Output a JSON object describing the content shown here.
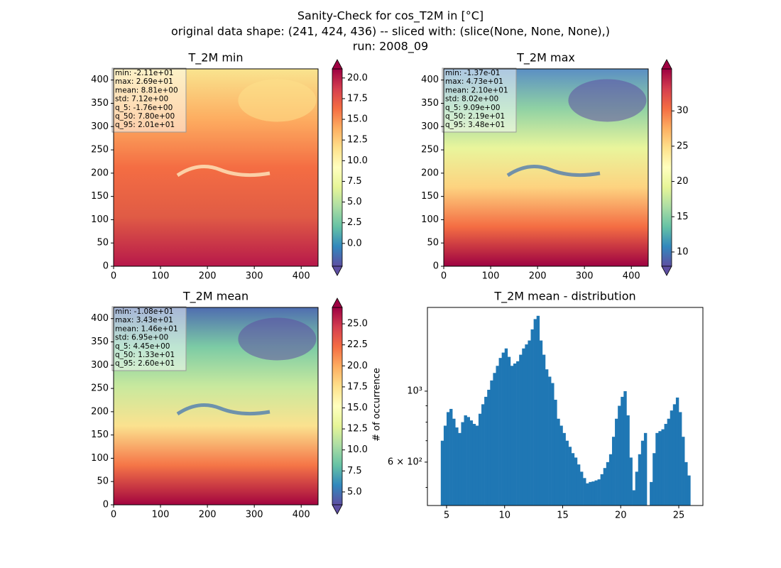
{
  "suptitle": [
    "Sanity-Check for cos_T2M in [°C]",
    "original data shape: (241, 424, 436) -- sliced with: (slice(None, None, None),)",
    "run: 2008_09"
  ],
  "chart_data": [
    {
      "type": "heatmap",
      "title": "T_2M min",
      "xlim": [
        0,
        436
      ],
      "xticks": [
        0,
        100,
        200,
        300,
        400
      ],
      "ylim": [
        0,
        424
      ],
      "yticks": [
        0,
        50,
        100,
        150,
        200,
        250,
        300,
        350,
        400
      ],
      "colormap": [
        "#5e4fa2",
        "#3288bd",
        "#66c2a5",
        "#abdda4",
        "#e6f598",
        "#ffffbf",
        "#fee08b",
        "#fdae61",
        "#f46d43",
        "#d53e4f",
        "#9e0142"
      ],
      "clim": [
        -2.76,
        21.1
      ],
      "cticks": [
        {
          "value": 0,
          "label": "0.0"
        },
        {
          "value": 2.5,
          "label": "2.5"
        },
        {
          "value": 5,
          "label": "5.0"
        },
        {
          "value": 7.5,
          "label": "7.5"
        },
        {
          "value": 10,
          "label": "10.0"
        },
        {
          "value": 12.5,
          "label": "12.5"
        },
        {
          "value": 15,
          "label": "15.0"
        },
        {
          "value": 17.5,
          "label": "17.5"
        },
        {
          "value": 20,
          "label": "20.0"
        }
      ],
      "stats": [
        "min: -2.11e+01",
        "max: 2.69e+01",
        "mean: 8.81e+00",
        "std: 7.12e+00",
        "q_5: -1.76e+00",
        "q_50: 7.80e+00",
        "q_95: 2.01e+01"
      ]
    },
    {
      "type": "heatmap",
      "title": "T_2M max",
      "xlim": [
        0,
        436
      ],
      "xticks": [
        0,
        100,
        200,
        300,
        400
      ],
      "ylim": [
        0,
        424
      ],
      "yticks": [
        0,
        50,
        100,
        150,
        200,
        250,
        300,
        350,
        400
      ],
      "colormap": [
        "#5e4fa2",
        "#3288bd",
        "#66c2a5",
        "#abdda4",
        "#e6f598",
        "#ffffbf",
        "#fee08b",
        "#fdae61",
        "#f46d43",
        "#d53e4f",
        "#9e0142"
      ],
      "clim": [
        7.98,
        35.96
      ],
      "cticks": [
        10,
        15,
        20,
        25,
        30
      ],
      "stats": [
        "min: -1.37e-01",
        "max: 4.73e+01",
        "mean: 2.10e+01",
        "std: 8.02e+00",
        "q_5: 9.09e+00",
        "q_50: 2.19e+01",
        "q_95: 3.48e+01"
      ]
    },
    {
      "type": "heatmap",
      "title": "T_2M mean",
      "xlim": [
        0,
        436
      ],
      "xticks": [
        0,
        100,
        200,
        300,
        400
      ],
      "ylim": [
        0,
        424
      ],
      "yticks": [
        0,
        50,
        100,
        150,
        200,
        250,
        300,
        350,
        400
      ],
      "colormap": [
        "#5e4fa2",
        "#3288bd",
        "#66c2a5",
        "#abdda4",
        "#e6f598",
        "#ffffbf",
        "#fee08b",
        "#fdae61",
        "#f46d43",
        "#d53e4f",
        "#9e0142"
      ],
      "clim": [
        3.47,
        26.95
      ],
      "cticks": [
        {
          "value": 5,
          "label": "5.0"
        },
        {
          "value": 7.5,
          "label": "7.5"
        },
        {
          "value": 10,
          "label": "10.0"
        },
        {
          "value": 12.5,
          "label": "12.5"
        },
        {
          "value": 15,
          "label": "15.0"
        },
        {
          "value": 17.5,
          "label": "17.5"
        },
        {
          "value": 20,
          "label": "20.0"
        },
        {
          "value": 22.5,
          "label": "22.5"
        },
        {
          "value": 25,
          "label": "25.0"
        }
      ],
      "stats": [
        "min: -1.08e+01",
        "max: 3.43e+01",
        "mean: 1.46e+01",
        "std: 6.95e+00",
        "q_5: 4.45e+00",
        "q_50: 1.33e+01",
        "q_95: 2.60e+01"
      ]
    },
    {
      "type": "histogram",
      "title": "T_2M mean - distribution",
      "ylabel": "# of occurrence",
      "color": "#1f77b4",
      "log_y": true,
      "xlim": [
        3.35,
        27.08
      ],
      "xticks": [
        5,
        10,
        15,
        20,
        25
      ],
      "ylim": [
        439,
        1827
      ],
      "yticks": [
        {
          "value": 600,
          "label": "6 × 10²"
        },
        {
          "value": 1000,
          "label": "10³"
        }
      ],
      "yminor_ticks": [
        500,
        700,
        800,
        900
      ],
      "bins": [
        4.5,
        4.75,
        5,
        5.25,
        5.5,
        5.75,
        6,
        6.25,
        6.5,
        6.75,
        7,
        7.25,
        7.5,
        7.75,
        8,
        8.25,
        8.5,
        8.75,
        9,
        9.25,
        9.5,
        9.75,
        10,
        10.25,
        10.5,
        10.75,
        11,
        11.25,
        11.5,
        11.75,
        12,
        12.25,
        12.5,
        12.75,
        13,
        13.25,
        13.5,
        13.75,
        14,
        14.25,
        14.5,
        14.75,
        15,
        15.25,
        15.5,
        15.75,
        16,
        16.25,
        16.5,
        16.75,
        17,
        17.25,
        17.5,
        17.75,
        18,
        18.25,
        18.5,
        18.75,
        19,
        19.25,
        19.5,
        19.75,
        20,
        20.25,
        20.5,
        20.75,
        21,
        21.25,
        21.5,
        21.75,
        22,
        22.25,
        22.5,
        22.75,
        23,
        23.25,
        23.5,
        23.75,
        24,
        24.25,
        24.5,
        24.75,
        25,
        25.25,
        25.5,
        25.75,
        26
      ],
      "values": [
        700,
        780,
        860,
        880,
        820,
        770,
        740,
        800,
        840,
        830,
        810,
        790,
        780,
        850,
        910,
        960,
        1010,
        1080,
        1140,
        1200,
        1270,
        1320,
        1360,
        1280,
        1200,
        1220,
        1240,
        1300,
        1360,
        1400,
        1440,
        1560,
        1680,
        1720,
        1440,
        1300,
        1170,
        1110,
        1060,
        940,
        820,
        780,
        740,
        700,
        670,
        640,
        620,
        590,
        560,
        535,
        515,
        520,
        522,
        526,
        530,
        550,
        575,
        600,
        635,
        720,
        820,
        900,
        960,
        1000,
        840,
        620,
        490,
        560,
        635,
        700,
        740,
        430,
        520,
        640,
        740,
        750,
        760,
        790,
        820,
        870,
        910,
        955,
        860,
        720,
        600,
        545
      ]
    }
  ]
}
